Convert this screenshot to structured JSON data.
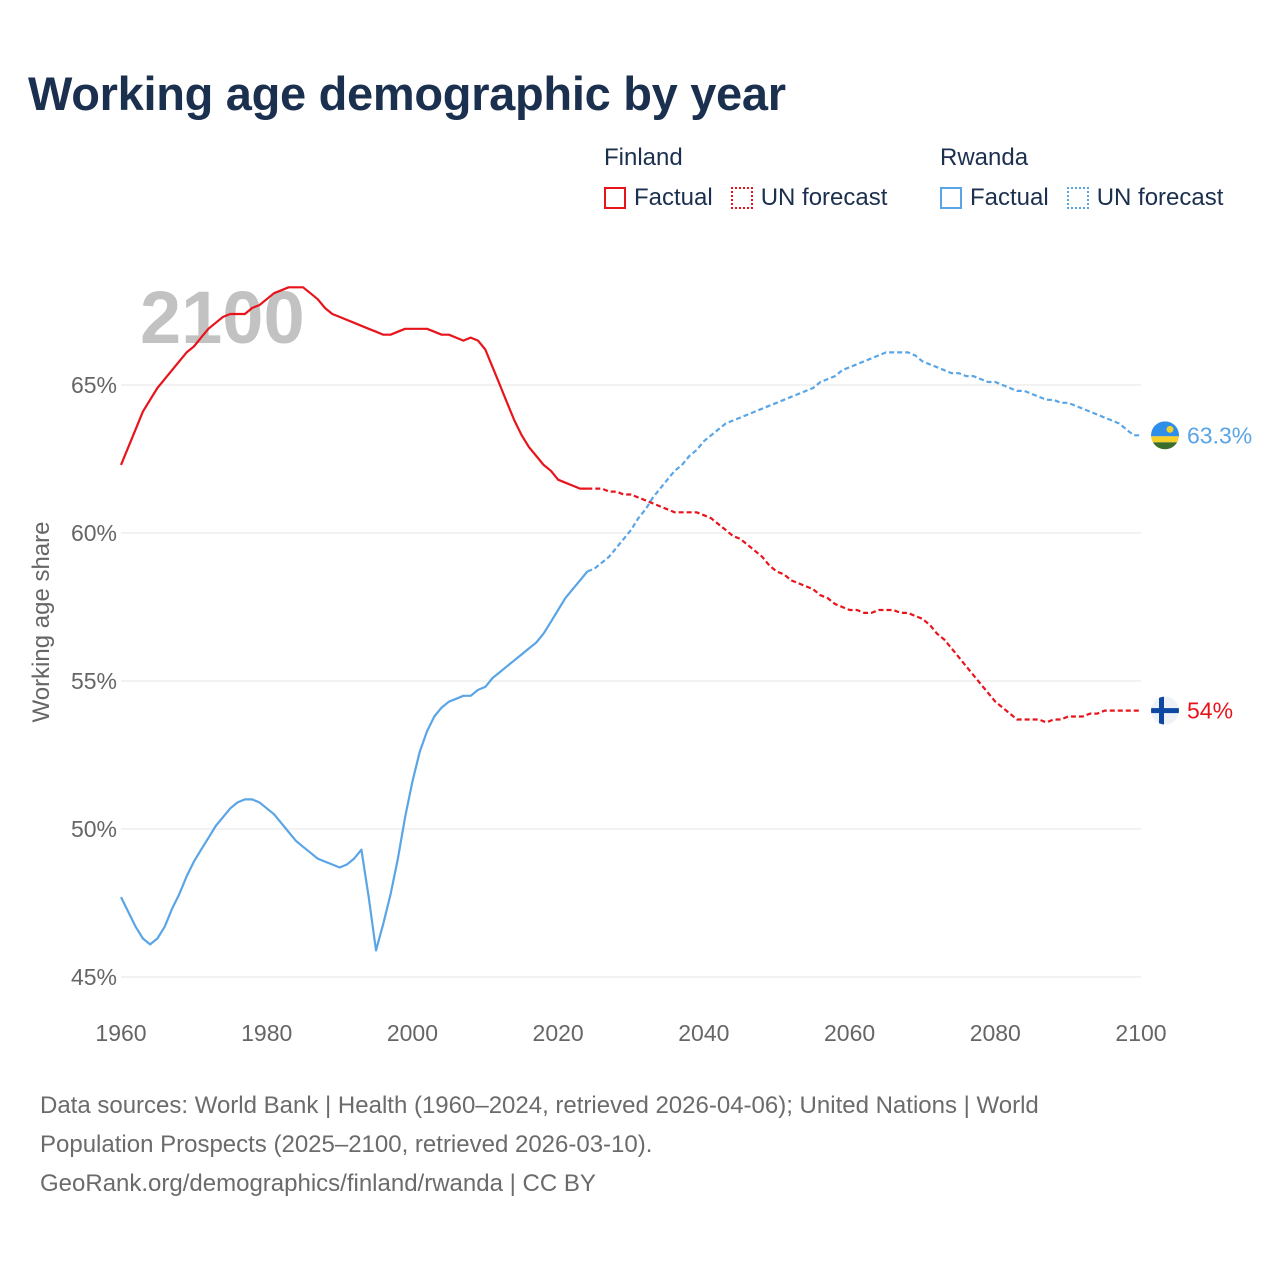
{
  "title": "Working age demographic by year",
  "legend": {
    "groups": [
      {
        "name": "Finland",
        "color": "#e8141c",
        "factual_label": "Factual",
        "forecast_label": "UN forecast"
      },
      {
        "name": "Rwanda",
        "color": "#5aa5e6",
        "factual_label": "Factual",
        "forecast_label": "UN forecast"
      }
    ]
  },
  "sources": {
    "line1": "Data sources: World Bank | Health (1960–2024, retrieved 2026-04-06); United Nations | World",
    "line2": "Population Prospects (2025–2100, retrieved 2026-03-10).",
    "line3": "GeoRank.org/demographics/finland/rwanda | CC BY"
  },
  "chart_data": {
    "type": "line",
    "title": "Working age demographic by year",
    "xlabel": "",
    "ylabel": "Working age share",
    "current_year": "2100",
    "xlim": [
      1960,
      2100
    ],
    "ylim": [
      45,
      68.5
    ],
    "x_ticks": [
      1960,
      1980,
      2000,
      2020,
      2040,
      2060,
      2080,
      2100
    ],
    "y_ticks": [
      45,
      50,
      55,
      60,
      65
    ],
    "y_tick_labels": [
      "45%",
      "50%",
      "55%",
      "60%",
      "65%"
    ],
    "grid": true,
    "forecast_start_year": 2024,
    "series": [
      {
        "name": "Finland",
        "color": "#e8141c",
        "end_label": "54%",
        "end_icon": "finland-flag-icon",
        "points": [
          [
            1960,
            62.3
          ],
          [
            1961,
            62.9
          ],
          [
            1962,
            63.5
          ],
          [
            1963,
            64.1
          ],
          [
            1964,
            64.5
          ],
          [
            1965,
            64.9
          ],
          [
            1966,
            65.2
          ],
          [
            1967,
            65.5
          ],
          [
            1968,
            65.8
          ],
          [
            1969,
            66.1
          ],
          [
            1970,
            66.3
          ],
          [
            1971,
            66.6
          ],
          [
            1972,
            66.9
          ],
          [
            1973,
            67.1
          ],
          [
            1974,
            67.3
          ],
          [
            1975,
            67.4
          ],
          [
            1976,
            67.4
          ],
          [
            1977,
            67.4
          ],
          [
            1978,
            67.6
          ],
          [
            1979,
            67.7
          ],
          [
            1980,
            67.9
          ],
          [
            1981,
            68.1
          ],
          [
            1982,
            68.2
          ],
          [
            1983,
            68.3
          ],
          [
            1984,
            68.3
          ],
          [
            1985,
            68.3
          ],
          [
            1986,
            68.1
          ],
          [
            1987,
            67.9
          ],
          [
            1988,
            67.6
          ],
          [
            1989,
            67.4
          ],
          [
            1990,
            67.3
          ],
          [
            1991,
            67.2
          ],
          [
            1992,
            67.1
          ],
          [
            1993,
            67.0
          ],
          [
            1994,
            66.9
          ],
          [
            1995,
            66.8
          ],
          [
            1996,
            66.7
          ],
          [
            1997,
            66.7
          ],
          [
            1998,
            66.8
          ],
          [
            1999,
            66.9
          ],
          [
            2000,
            66.9
          ],
          [
            2001,
            66.9
          ],
          [
            2002,
            66.9
          ],
          [
            2003,
            66.8
          ],
          [
            2004,
            66.7
          ],
          [
            2005,
            66.7
          ],
          [
            2006,
            66.6
          ],
          [
            2007,
            66.5
          ],
          [
            2008,
            66.6
          ],
          [
            2009,
            66.5
          ],
          [
            2010,
            66.2
          ],
          [
            2011,
            65.6
          ],
          [
            2012,
            65.0
          ],
          [
            2013,
            64.4
          ],
          [
            2014,
            63.8
          ],
          [
            2015,
            63.3
          ],
          [
            2016,
            62.9
          ],
          [
            2017,
            62.6
          ],
          [
            2018,
            62.3
          ],
          [
            2019,
            62.1
          ],
          [
            2020,
            61.8
          ],
          [
            2021,
            61.7
          ],
          [
            2022,
            61.6
          ],
          [
            2023,
            61.5
          ],
          [
            2024,
            61.5
          ],
          [
            2025,
            61.5
          ],
          [
            2026,
            61.5
          ],
          [
            2027,
            61.4
          ],
          [
            2028,
            61.4
          ],
          [
            2029,
            61.3
          ],
          [
            2030,
            61.3
          ],
          [
            2031,
            61.2
          ],
          [
            2032,
            61.1
          ],
          [
            2033,
            61.0
          ],
          [
            2034,
            60.9
          ],
          [
            2035,
            60.8
          ],
          [
            2036,
            60.7
          ],
          [
            2037,
            60.7
          ],
          [
            2038,
            60.7
          ],
          [
            2039,
            60.7
          ],
          [
            2040,
            60.6
          ],
          [
            2041,
            60.5
          ],
          [
            2042,
            60.3
          ],
          [
            2043,
            60.1
          ],
          [
            2044,
            59.9
          ],
          [
            2045,
            59.8
          ],
          [
            2046,
            59.6
          ],
          [
            2047,
            59.4
          ],
          [
            2048,
            59.2
          ],
          [
            2049,
            58.9
          ],
          [
            2050,
            58.7
          ],
          [
            2051,
            58.6
          ],
          [
            2052,
            58.4
          ],
          [
            2053,
            58.3
          ],
          [
            2054,
            58.2
          ],
          [
            2055,
            58.1
          ],
          [
            2056,
            57.9
          ],
          [
            2057,
            57.8
          ],
          [
            2058,
            57.6
          ],
          [
            2059,
            57.5
          ],
          [
            2060,
            57.4
          ],
          [
            2061,
            57.4
          ],
          [
            2062,
            57.3
          ],
          [
            2063,
            57.3
          ],
          [
            2064,
            57.4
          ],
          [
            2065,
            57.4
          ],
          [
            2066,
            57.4
          ],
          [
            2067,
            57.3
          ],
          [
            2068,
            57.3
          ],
          [
            2069,
            57.2
          ],
          [
            2070,
            57.1
          ],
          [
            2071,
            56.9
          ],
          [
            2072,
            56.6
          ],
          [
            2073,
            56.4
          ],
          [
            2074,
            56.1
          ],
          [
            2075,
            55.8
          ],
          [
            2076,
            55.5
          ],
          [
            2077,
            55.2
          ],
          [
            2078,
            54.9
          ],
          [
            2079,
            54.6
          ],
          [
            2080,
            54.3
          ],
          [
            2081,
            54.1
          ],
          [
            2082,
            53.9
          ],
          [
            2083,
            53.7
          ],
          [
            2084,
            53.7
          ],
          [
            2085,
            53.7
          ],
          [
            2086,
            53.7
          ],
          [
            2087,
            53.6
          ],
          [
            2088,
            53.7
          ],
          [
            2089,
            53.7
          ],
          [
            2090,
            53.8
          ],
          [
            2091,
            53.8
          ],
          [
            2092,
            53.8
          ],
          [
            2093,
            53.9
          ],
          [
            2094,
            53.9
          ],
          [
            2095,
            54.0
          ],
          [
            2096,
            54.0
          ],
          [
            2097,
            54.0
          ],
          [
            2098,
            54.0
          ],
          [
            2099,
            54.0
          ],
          [
            2100,
            54.0
          ]
        ]
      },
      {
        "name": "Rwanda",
        "color": "#5aa5e6",
        "end_label": "63.3%",
        "end_icon": "rwanda-flag-icon",
        "points": [
          [
            1960,
            47.7
          ],
          [
            1961,
            47.2
          ],
          [
            1962,
            46.7
          ],
          [
            1963,
            46.3
          ],
          [
            1964,
            46.1
          ],
          [
            1965,
            46.3
          ],
          [
            1966,
            46.7
          ],
          [
            1967,
            47.3
          ],
          [
            1968,
            47.8
          ],
          [
            1969,
            48.4
          ],
          [
            1970,
            48.9
          ],
          [
            1971,
            49.3
          ],
          [
            1972,
            49.7
          ],
          [
            1973,
            50.1
          ],
          [
            1974,
            50.4
          ],
          [
            1975,
            50.7
          ],
          [
            1976,
            50.9
          ],
          [
            1977,
            51.0
          ],
          [
            1978,
            51.0
          ],
          [
            1979,
            50.9
          ],
          [
            1980,
            50.7
          ],
          [
            1981,
            50.5
          ],
          [
            1982,
            50.2
          ],
          [
            1983,
            49.9
          ],
          [
            1984,
            49.6
          ],
          [
            1985,
            49.4
          ],
          [
            1986,
            49.2
          ],
          [
            1987,
            49.0
          ],
          [
            1988,
            48.9
          ],
          [
            1989,
            48.8
          ],
          [
            1990,
            48.7
          ],
          [
            1991,
            48.8
          ],
          [
            1992,
            49.0
          ],
          [
            1993,
            49.3
          ],
          [
            1994,
            47.7
          ],
          [
            1995,
            45.9
          ],
          [
            1996,
            46.8
          ],
          [
            1997,
            47.8
          ],
          [
            1998,
            49.0
          ],
          [
            1999,
            50.4
          ],
          [
            2000,
            51.6
          ],
          [
            2001,
            52.6
          ],
          [
            2002,
            53.3
          ],
          [
            2003,
            53.8
          ],
          [
            2004,
            54.1
          ],
          [
            2005,
            54.3
          ],
          [
            2006,
            54.4
          ],
          [
            2007,
            54.5
          ],
          [
            2008,
            54.5
          ],
          [
            2009,
            54.7
          ],
          [
            2010,
            54.8
          ],
          [
            2011,
            55.1
          ],
          [
            2012,
            55.3
          ],
          [
            2013,
            55.5
          ],
          [
            2014,
            55.7
          ],
          [
            2015,
            55.9
          ],
          [
            2016,
            56.1
          ],
          [
            2017,
            56.3
          ],
          [
            2018,
            56.6
          ],
          [
            2019,
            57.0
          ],
          [
            2020,
            57.4
          ],
          [
            2021,
            57.8
          ],
          [
            2022,
            58.1
          ],
          [
            2023,
            58.4
          ],
          [
            2024,
            58.7
          ],
          [
            2025,
            58.8
          ],
          [
            2026,
            59.0
          ],
          [
            2027,
            59.2
          ],
          [
            2028,
            59.5
          ],
          [
            2029,
            59.8
          ],
          [
            2030,
            60.1
          ],
          [
            2031,
            60.5
          ],
          [
            2032,
            60.8
          ],
          [
            2033,
            61.2
          ],
          [
            2034,
            61.5
          ],
          [
            2035,
            61.8
          ],
          [
            2036,
            62.1
          ],
          [
            2037,
            62.3
          ],
          [
            2038,
            62.6
          ],
          [
            2039,
            62.8
          ],
          [
            2040,
            63.1
          ],
          [
            2041,
            63.3
          ],
          [
            2042,
            63.5
          ],
          [
            2043,
            63.7
          ],
          [
            2044,
            63.8
          ],
          [
            2045,
            63.9
          ],
          [
            2046,
            64.0
          ],
          [
            2047,
            64.1
          ],
          [
            2048,
            64.2
          ],
          [
            2049,
            64.3
          ],
          [
            2050,
            64.4
          ],
          [
            2051,
            64.5
          ],
          [
            2052,
            64.6
          ],
          [
            2053,
            64.7
          ],
          [
            2054,
            64.8
          ],
          [
            2055,
            64.9
          ],
          [
            2056,
            65.1
          ],
          [
            2057,
            65.2
          ],
          [
            2058,
            65.3
          ],
          [
            2059,
            65.5
          ],
          [
            2060,
            65.6
          ],
          [
            2061,
            65.7
          ],
          [
            2062,
            65.8
          ],
          [
            2063,
            65.9
          ],
          [
            2064,
            66.0
          ],
          [
            2065,
            66.1
          ],
          [
            2066,
            66.1
          ],
          [
            2067,
            66.1
          ],
          [
            2068,
            66.1
          ],
          [
            2069,
            66.0
          ],
          [
            2070,
            65.8
          ],
          [
            2071,
            65.7
          ],
          [
            2072,
            65.6
          ],
          [
            2073,
            65.5
          ],
          [
            2074,
            65.4
          ],
          [
            2075,
            65.4
          ],
          [
            2076,
            65.3
          ],
          [
            2077,
            65.3
          ],
          [
            2078,
            65.2
          ],
          [
            2079,
            65.1
          ],
          [
            2080,
            65.1
          ],
          [
            2081,
            65.0
          ],
          [
            2082,
            64.9
          ],
          [
            2083,
            64.8
          ],
          [
            2084,
            64.8
          ],
          [
            2085,
            64.7
          ],
          [
            2086,
            64.6
          ],
          [
            2087,
            64.5
          ],
          [
            2088,
            64.5
          ],
          [
            2089,
            64.4
          ],
          [
            2090,
            64.4
          ],
          [
            2091,
            64.3
          ],
          [
            2092,
            64.2
          ],
          [
            2093,
            64.1
          ],
          [
            2094,
            64.0
          ],
          [
            2095,
            63.9
          ],
          [
            2096,
            63.8
          ],
          [
            2097,
            63.7
          ],
          [
            2098,
            63.5
          ],
          [
            2099,
            63.3
          ],
          [
            2100,
            63.3
          ]
        ]
      }
    ]
  }
}
